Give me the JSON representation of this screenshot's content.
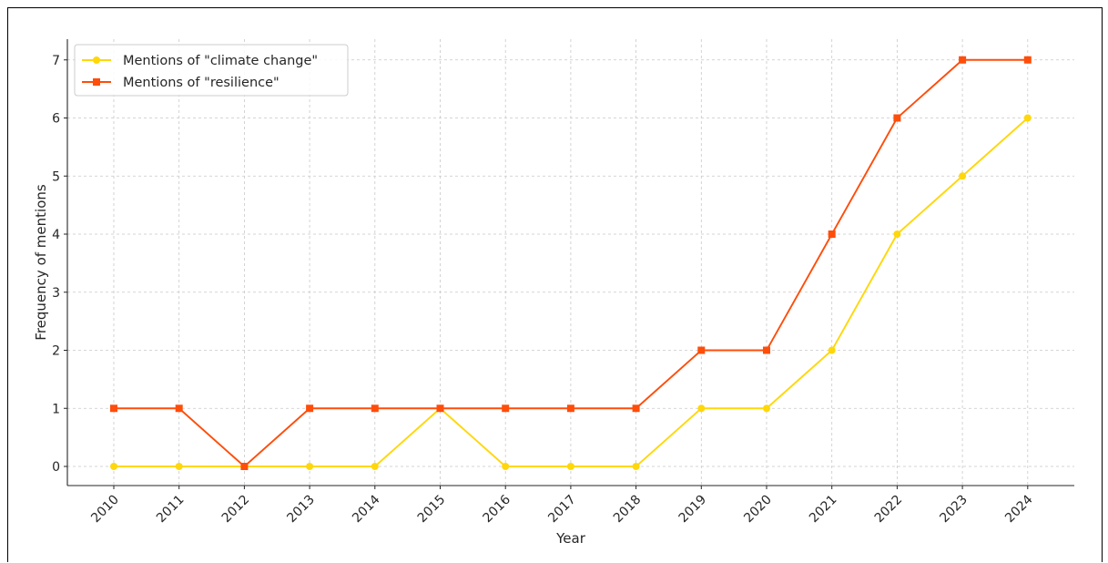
{
  "chart_data": {
    "type": "line",
    "title": "",
    "xlabel": "Year",
    "ylabel": "Frequency of mentions",
    "x": [
      "2010",
      "2011",
      "2012",
      "2013",
      "2014",
      "2015",
      "2016",
      "2017",
      "2018",
      "2019",
      "2020",
      "2021",
      "2022",
      "2023",
      "2024"
    ],
    "ylim": [
      0,
      7
    ],
    "yticks": [
      "0",
      "1",
      "2",
      "3",
      "4",
      "5",
      "6",
      "7"
    ],
    "grid": true,
    "legend_position": "top-left",
    "series": [
      {
        "name": "Mentions of \"climate change\"",
        "color": "#FFD70A",
        "marker": "circle",
        "values": [
          0,
          0,
          0,
          0,
          0,
          1,
          0,
          0,
          0,
          1,
          1,
          2,
          4,
          5,
          6
        ]
      },
      {
        "name": "Mentions of \"resilience\"",
        "color": "#FF4D0A",
        "marker": "square",
        "values": [
          1,
          1,
          0,
          1,
          1,
          1,
          1,
          1,
          1,
          2,
          2,
          4,
          6,
          7,
          7
        ]
      }
    ]
  }
}
